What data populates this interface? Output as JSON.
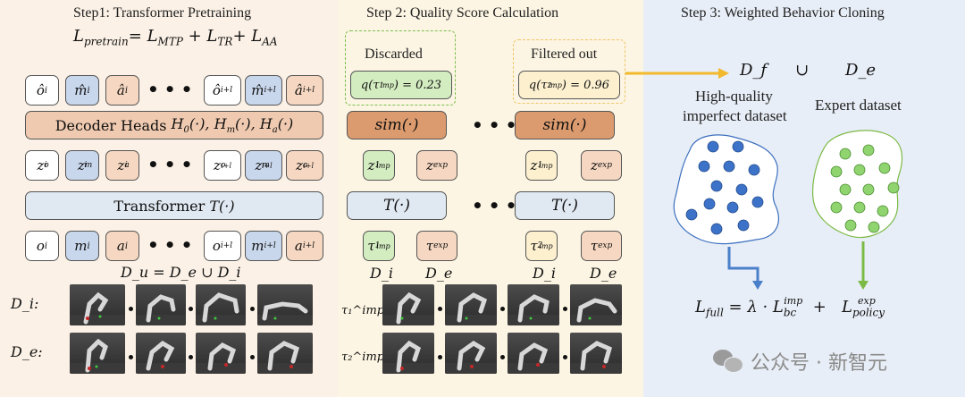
{
  "step1": {
    "title": "Step1: Transformer Pretraining",
    "loss": "L_pretrain = L_MTP + L_TR + L_AA",
    "decoder_label": "Decoder Heads H₀(·), H_m(·), H_a(·)",
    "transformer_label": "Transformer T(·)",
    "dataset_formula": "D_u = D_e ∪ D_i",
    "row_labels": {
      "imperfect": "D_i:",
      "expert": "D_e:"
    }
  },
  "step2": {
    "title": "Step 2: Quality Score Calculation",
    "discarded_label": "Discarded",
    "filtered_label": "Filtered out",
    "score_left": "q(τ₁^imp) = 0.23",
    "score_right": "q(τ₂^imp) = 0.96",
    "sim_label": "sim(·)",
    "transformer_label": "T(·)",
    "dataset_labels": [
      "D_i",
      "D_e",
      "D_i",
      "D_e"
    ],
    "row_labels": [
      "τ₁^imp:",
      "τ₂^imp:"
    ]
  },
  "step3": {
    "title": "Step 3: Weighted Behavior Cloning",
    "df": "D_f",
    "union": "∪",
    "de": "D_e",
    "hq_label_1": "High-quality",
    "hq_label_2": "imperfect dataset",
    "expert_label": "Expert dataset",
    "loss": "L_full = λ · L_bc^imp + L_policy^exp"
  },
  "watermark": "公众号 · 新智元",
  "colors": {
    "step1_bg": "#fbf1e6",
    "step2_bg": "#fcf5e3",
    "step3_bg": "#e8eef7",
    "decoder": "#efcab0",
    "sim": "#dc9b6e",
    "transformer": "#e0e8f1",
    "blue_token": "#c9d7ec",
    "peach_token": "#f6d8c2",
    "green": "#d3ecc0",
    "yellow": "#fcf0cf",
    "arrow_yellow": "#f2b92c",
    "arrow_blue": "#4a7fc9",
    "arrow_green": "#7cba46",
    "blue_dot": "#3c73c9",
    "green_dot": "#8fd46f"
  }
}
